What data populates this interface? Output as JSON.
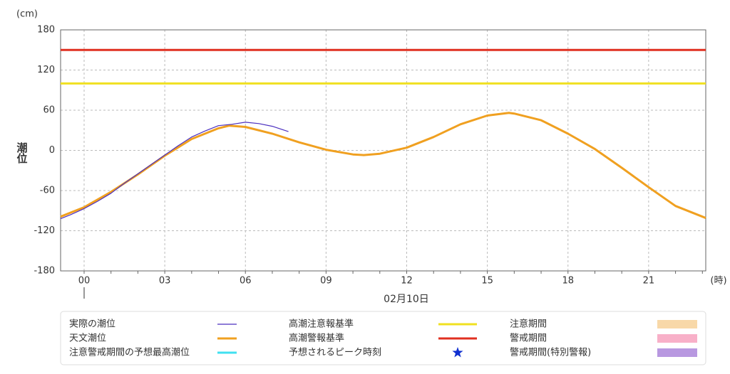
{
  "chart_data": {
    "type": "line",
    "y_unit": "(cm)",
    "y_label": "潮位",
    "x_unit": "(時)",
    "x_label": "02月10日",
    "xlim": [
      -0.875,
      23.125
    ],
    "xticks": [
      {
        "value": 0,
        "label": "00"
      },
      {
        "value": 3,
        "label": "03"
      },
      {
        "value": 6,
        "label": "06"
      },
      {
        "value": 9,
        "label": "09"
      },
      {
        "value": 12,
        "label": "12"
      },
      {
        "value": 15,
        "label": "15"
      },
      {
        "value": 18,
        "label": "18"
      },
      {
        "value": 21,
        "label": "21"
      }
    ],
    "ylim": [
      -180,
      180
    ],
    "yticks": [
      -180,
      -120,
      -60,
      0,
      60,
      120,
      180
    ],
    "grid": true,
    "series": [
      {
        "name": "実際の潮位",
        "color": "#4b2fbf",
        "x": [
          -0.875,
          -0.5,
          0,
          0.5,
          1,
          1.5,
          2,
          2.5,
          3,
          3.5,
          4,
          4.5,
          5,
          5.5,
          6,
          6.5,
          7,
          7.6
        ],
        "values": [
          -102,
          -96,
          -87,
          -76,
          -64,
          -49,
          -35,
          -21,
          -7,
          7,
          20,
          29,
          37,
          39,
          42,
          40,
          36,
          28
        ]
      },
      {
        "name": "天文潮位",
        "color": "#f0a020",
        "x": [
          -0.875,
          0,
          1,
          2,
          3,
          4,
          5,
          5.4,
          6,
          7,
          8,
          9,
          10,
          10.4,
          11,
          12,
          13,
          14,
          15,
          15.8,
          16,
          17,
          18,
          19,
          20,
          21,
          22,
          23,
          23.125
        ],
        "values": [
          -99,
          -85,
          -62,
          -36,
          -8,
          17,
          33,
          37,
          35,
          25,
          12,
          1,
          -6,
          -7,
          -5,
          4,
          20,
          39,
          52,
          56,
          55,
          45,
          25,
          2,
          -26,
          -55,
          -83,
          -99,
          -101
        ]
      }
    ],
    "hlines": [
      {
        "name": "高潮注意報基準",
        "color": "#f0e020",
        "value": 100
      },
      {
        "name": "高潮警報基準",
        "color": "#e03020",
        "value": 150
      }
    ],
    "legend_extra": [
      {
        "name": "注意警戒期間の予想最高潮位",
        "color": "#40e0f0",
        "symbol": "line"
      },
      {
        "name": "予想されるピーク時刻",
        "color": "#1030d0",
        "symbol": "star"
      },
      {
        "name": "注意期間",
        "color": "#f8d8a8",
        "symbol": "rect"
      },
      {
        "name": "警戒期間",
        "color": "#f8b0c8",
        "symbol": "rect"
      },
      {
        "name": "警戒期間(特別警報)",
        "color": "#b898e0",
        "symbol": "rect"
      }
    ]
  }
}
